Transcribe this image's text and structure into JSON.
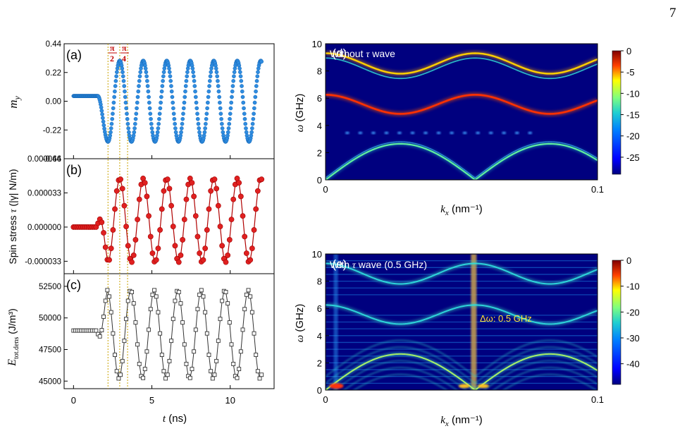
{
  "page_number": "7",
  "left": {
    "vlines": [
      2.2,
      2.95,
      3.45
    ],
    "phase_labels": [
      {
        "num": "π",
        "den": "2"
      },
      {
        "num": "π",
        "den": "4"
      }
    ],
    "x_axis": {
      "label_italic": "t",
      "label_unit": " (ns)",
      "ticks": [
        "0",
        "5",
        "10"
      ],
      "tick_values": [
        0,
        5,
        10
      ],
      "range": [
        -0.6,
        12.8
      ]
    }
  },
  "chart_data": [
    {
      "type": "scatter",
      "panel": "(a)",
      "ylabel_italic": "m",
      "ylabel_sub": "y",
      "xlim": [
        -0.6,
        12.8
      ],
      "ylim": [
        -0.44,
        0.44
      ],
      "yticks": [
        "0.44",
        "0.22",
        "0.00",
        "-0.22",
        "-0.44"
      ],
      "ytick_values": [
        0.44,
        0.22,
        0.0,
        -0.22,
        -0.44
      ],
      "color": "#1f7fd6",
      "series": [
        {
          "t_start": 0.0,
          "t_end": 12.0,
          "n_points": 360,
          "onset": 1.55,
          "initial_value": 0.04,
          "amplitude": 0.31,
          "period": 1.5,
          "first_min_time": 2.2,
          "x_equation": "t",
          "y_model": "m_y(t) = 0.04 for t < 1.55; dips to about -0.31 at t = 2.2 ns, then oscillates with amplitude 0.31 and period 1.5 ns"
        }
      ]
    },
    {
      "type": "line",
      "panel": "(b)",
      "ylabel": "Spin stress ",
      "ylabel_italic": "τ",
      "ylabel_unit": " (|γ| N/m)",
      "xlim": [
        -0.6,
        12.8
      ],
      "ylim": [
        -4.5e-05,
        6.6e-05
      ],
      "yticks": [
        "0.000066",
        "0.000033",
        "0.000000",
        "-0.000033"
      ],
      "ytick_values": [
        6.6e-05,
        3.3e-05,
        0.0,
        -3.3e-05
      ],
      "color": "#d62728",
      "series": [
        {
          "t_start": 0.0,
          "t_end": 12.0,
          "n_points": 100,
          "onset": 1.5,
          "initial_value": 0.0,
          "amplitude": 4.05e-05,
          "offset": 6.5e-06,
          "period": 1.5,
          "first_min_time": 2.2,
          "x_equation": "t",
          "y_model": "tau(t) = 0 for t < 1.5; oscillates between about -0.000034 and 0.000047 with period 1.5 ns, first minimum near t = 2.2 ns"
        }
      ]
    },
    {
      "type": "line",
      "panel": "(c)",
      "ylabel_italic": "E",
      "ylabel_sub": "tot.dens",
      "ylabel_unit": " (J/m³)",
      "xlim": [
        -0.6,
        12.8
      ],
      "ylim": [
        44400,
        53500
      ],
      "yticks": [
        "52500",
        "50000",
        "47500",
        "45000"
      ],
      "ytick_values": [
        52500,
        50000,
        47500,
        45000
      ],
      "color": "#444444",
      "series": [
        {
          "t_start": 0.0,
          "t_end": 12.0,
          "n_points": 100,
          "onset": 1.5,
          "initial_value": 49000,
          "amplitude": 3500,
          "offset": 48700,
          "period": 1.5,
          "first_max_time": 2.15,
          "x_equation": "t",
          "y_model": "E(t) = 49000 for t < 1.5; oscillates between about 45200 and 52200 with period 1.5 ns, first maximum near t = 2.15 ns"
        }
      ]
    },
    {
      "type": "heatmap",
      "panel": "(d)",
      "title": "Without ",
      "title_italic": "τ",
      "title_rest": " wave",
      "xlabel_italic": "k",
      "xlabel_sub": "x",
      "xlabel_unit": " (nm⁻¹)",
      "ylabel_italic": "ω",
      "ylabel_unit": " (GHz)",
      "xlim": [
        0,
        0.1
      ],
      "ylim": [
        0,
        10
      ],
      "xticks": [
        "0",
        "0.1"
      ],
      "yticks": [
        "0",
        "2",
        "4",
        "6",
        "8",
        "10"
      ],
      "colorbar_ticks": [
        "0",
        "-5",
        "-10",
        "-15",
        "-20",
        "-25"
      ],
      "colorbar_values": [
        0,
        -5,
        -10,
        -15,
        -20,
        -25
      ],
      "colorbar_range": [
        -29,
        0
      ],
      "bands": [
        {
          "name": "acoustic",
          "equation": "2.65*|sin(pi*k/0.055)|",
          "peak_ghz": 2.65
        },
        {
          "name": "lower optical",
          "equation": "5.55 + 0.7*cos(2*pi*k/0.055)",
          "range_ghz": [
            4.85,
            6.25
          ]
        },
        {
          "name": "upper optical",
          "equation": "8.55 + 0.75*cos(2*pi*(k-0.055)/0.055)",
          "range_ghz": [
            7.8,
            9.3
          ]
        },
        {
          "name": "flat",
          "omega_ghz": 3.45
        }
      ]
    },
    {
      "type": "heatmap",
      "panel": "(e)",
      "title": "With ",
      "title_italic": "τ",
      "title_rest": " wave (0.5 GHz)",
      "annotation": "Δω: 0.5 GHz",
      "xlabel_italic": "k",
      "xlabel_sub": "x",
      "xlabel_unit": " (nm⁻¹)",
      "ylabel_italic": "ω",
      "ylabel_unit": " (GHz)",
      "xlim": [
        0,
        0.1
      ],
      "ylim": [
        0,
        10
      ],
      "xticks": [
        "0",
        "0.1"
      ],
      "yticks": [
        "0",
        "2",
        "4",
        "6",
        "8",
        "10"
      ],
      "colorbar_ticks": [
        "0",
        "-10",
        "-20",
        "-30",
        "-40"
      ],
      "colorbar_values": [
        0,
        -10,
        -20,
        -30,
        -40
      ],
      "colorbar_range": [
        -48,
        0
      ],
      "sideband_spacing_ghz": 0.5,
      "bands": [
        {
          "name": "acoustic",
          "equation": "2.65*|sin(pi*k/0.055)|"
        },
        {
          "name": "lower optical",
          "equation": "5.55 + 0.7*cos(2*pi*k/0.055)"
        },
        {
          "name": "upper optical",
          "equation": "8.55 + 0.75*cos(2*pi*(k-0.055)/0.055)"
        }
      ],
      "sideband_lines_ghz": [
        0.5,
        1.0,
        1.5,
        2.0,
        2.5,
        3.0,
        3.5,
        4.0,
        4.5,
        5.0,
        5.5,
        7.0,
        7.5,
        8.0,
        8.5,
        9.0,
        9.5
      ]
    }
  ]
}
